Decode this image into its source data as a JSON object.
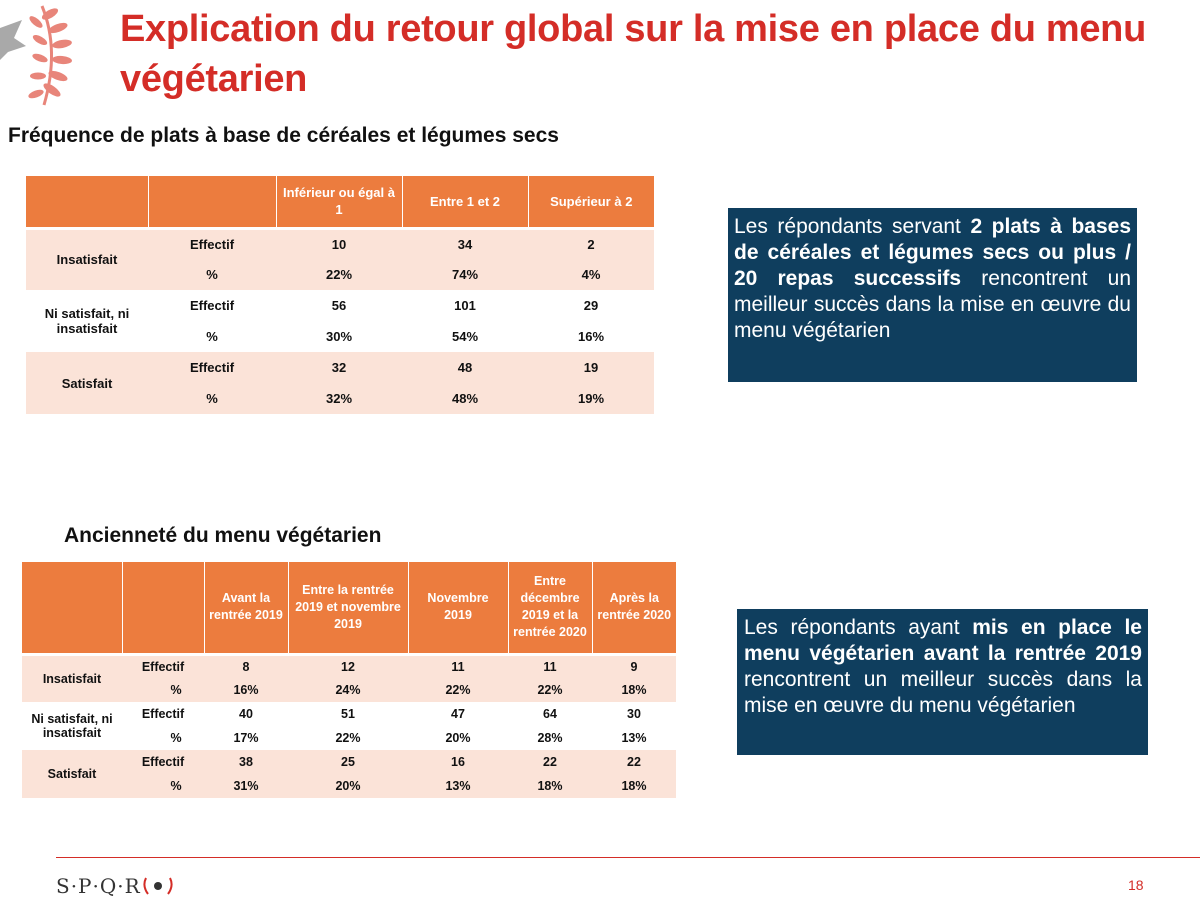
{
  "title": "Explication du retour global sur la mise en place du menu végétarien",
  "section1": {
    "heading": "Fréquence de plats à base de céréales et légumes secs",
    "columns": [
      "Inférieur ou égal à 1",
      "Entre 1 et 2",
      "Supérieur à 2"
    ],
    "rows": [
      {
        "group": "Insatisfait",
        "measures": [
          {
            "label": "Effectif",
            "values": [
              "10",
              "34",
              "2"
            ]
          },
          {
            "label": "%",
            "values": [
              "22%",
              "74%",
              "4%"
            ]
          }
        ]
      },
      {
        "group": "Ni satisfait, ni insatisfait",
        "measures": [
          {
            "label": "Effectif",
            "values": [
              "56",
              "101",
              "29"
            ]
          },
          {
            "label": "%",
            "values": [
              "30%",
              "54%",
              "16%"
            ]
          }
        ]
      },
      {
        "group": "Satisfait",
        "measures": [
          {
            "label": "Effectif",
            "values": [
              "32",
              "48",
              "19"
            ]
          },
          {
            "label": "%",
            "values": [
              "32%",
              "48%",
              "19%"
            ]
          }
        ]
      }
    ],
    "callout": {
      "part1": "Les répondants servant ",
      "bold": "2 plats à bases de céréales et légumes secs ou plus / 20 repas successifs",
      "part2": " rencontrent un meilleur succès dans la mise en œuvre du menu végétarien"
    }
  },
  "section2": {
    "heading": "Ancienneté du menu végétarien",
    "columns": [
      "Avant la rentrée 2019",
      "Entre la rentrée 2019 et novembre 2019",
      "Novembre 2019",
      "Entre décembre 2019 et la rentrée 2020",
      "Après la rentrée 2020"
    ],
    "rows": [
      {
        "group": "Insatisfait",
        "measures": [
          {
            "label": "Effectif",
            "values": [
              "8",
              "12",
              "11",
              "11",
              "9"
            ]
          },
          {
            "label": "%",
            "values": [
              "16%",
              "24%",
              "22%",
              "22%",
              "18%"
            ]
          }
        ]
      },
      {
        "group": "Ni satisfait, ni insatisfait",
        "measures": [
          {
            "label": "Effectif",
            "values": [
              "40",
              "51",
              "47",
              "64",
              "30"
            ]
          },
          {
            "label": "%",
            "values": [
              "17%",
              "22%",
              "20%",
              "28%",
              "13%"
            ]
          }
        ]
      },
      {
        "group": "Satisfait",
        "measures": [
          {
            "label": "Effectif",
            "values": [
              "38",
              "25",
              "16",
              "22",
              "22"
            ]
          },
          {
            "label": "%",
            "values": [
              "31%",
              "20%",
              "13%",
              "18%",
              "18%"
            ]
          }
        ]
      }
    ],
    "callout": {
      "part1": "Les répondants ayant ",
      "bold": "mis en place le menu végétarien avant la rentrée 2019",
      "part2": " rencontrent un meilleur succès dans la mise en œuvre du menu végétarien"
    }
  },
  "footer": {
    "logo": "S·P·Q·R",
    "page_number": "18"
  },
  "colors": {
    "title": "#d42d27",
    "table_header": "#ec7c3e",
    "row_band": "#fbe3d8",
    "callout_bg": "#0f3e5e"
  }
}
